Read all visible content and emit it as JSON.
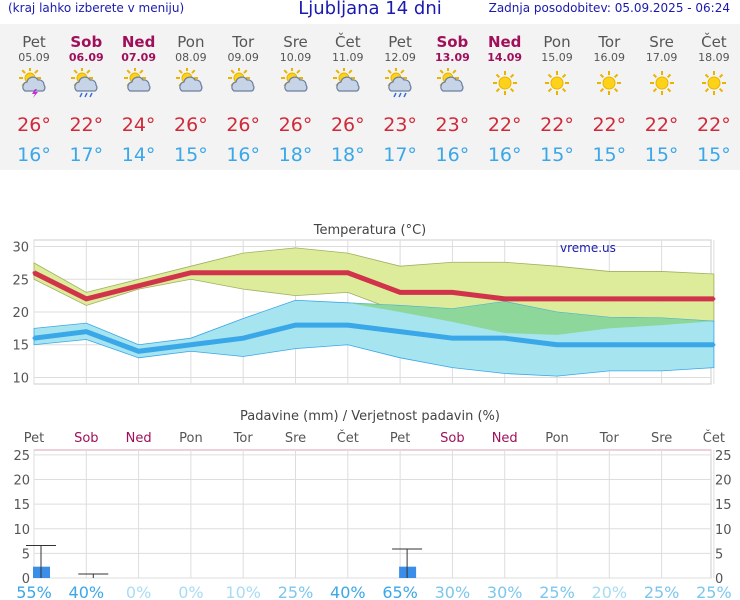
{
  "header": {
    "left_note": "(kraj lahko izberete v meniju)",
    "title": "Ljubljana 14 dni",
    "updated": "Zadnja posodobitev: 05.09.2025 - 06:24"
  },
  "days": [
    {
      "name": "Pet",
      "date": "05.09",
      "icon": "sun-cloud-thunder-icon",
      "max": "26°",
      "min": "16°",
      "weekend": false
    },
    {
      "name": "Sob",
      "date": "06.09",
      "icon": "sun-cloud-rain-icon",
      "max": "22°",
      "min": "17°",
      "weekend": true
    },
    {
      "name": "Ned",
      "date": "07.09",
      "icon": "sun-cloud-icon",
      "max": "24°",
      "min": "14°",
      "weekend": true
    },
    {
      "name": "Pon",
      "date": "08.09",
      "icon": "sun-cloud-icon",
      "max": "26°",
      "min": "15°",
      "weekend": false
    },
    {
      "name": "Tor",
      "date": "09.09",
      "icon": "sun-cloud-icon",
      "max": "26°",
      "min": "16°",
      "weekend": false
    },
    {
      "name": "Sre",
      "date": "10.09",
      "icon": "sun-cloud-icon",
      "max": "26°",
      "min": "18°",
      "weekend": false
    },
    {
      "name": "Čet",
      "date": "11.09",
      "icon": "sun-cloud-icon",
      "max": "26°",
      "min": "18°",
      "weekend": false
    },
    {
      "name": "Pet",
      "date": "12.09",
      "icon": "sun-cloud-rain-icon",
      "max": "23°",
      "min": "17°",
      "weekend": false
    },
    {
      "name": "Sob",
      "date": "13.09",
      "icon": "sun-cloud-icon",
      "max": "23°",
      "min": "16°",
      "weekend": true
    },
    {
      "name": "Ned",
      "date": "14.09",
      "icon": "sun-icon",
      "max": "22°",
      "min": "16°",
      "weekend": true
    },
    {
      "name": "Pon",
      "date": "15.09",
      "icon": "sun-icon",
      "max": "22°",
      "min": "15°",
      "weekend": false
    },
    {
      "name": "Tor",
      "date": "16.09",
      "icon": "sun-icon",
      "max": "22°",
      "min": "15°",
      "weekend": false
    },
    {
      "name": "Sre",
      "date": "17.09",
      "icon": "sun-icon",
      "max": "22°",
      "min": "15°",
      "weekend": false
    },
    {
      "name": "Čet",
      "date": "18.09",
      "icon": "sun-icon",
      "max": "22°",
      "min": "15°",
      "weekend": false
    }
  ],
  "colors": {
    "max_line": "#d0334a",
    "min_line": "#3aa7e8",
    "max_band": "#dcec9a",
    "min_band": "#a6e4f0",
    "overlap": "#88d58c",
    "rain_bar": "#3a8ee8",
    "weekend": "#a0105a",
    "weekday": "#555555",
    "prob": "#3aa7e8"
  },
  "chart_data": [
    {
      "type": "line",
      "title": "Temperatura (°C)",
      "watermark": "vreme.us",
      "categories": [
        "Pet",
        "Sob",
        "Ned",
        "Pon",
        "Tor",
        "Sre",
        "Čet",
        "Pet",
        "Sob",
        "Ned",
        "Pon",
        "Tor",
        "Sre",
        "Čet"
      ],
      "ylim": [
        9,
        31
      ],
      "yticks": [
        10,
        15,
        20,
        25,
        30
      ],
      "grid": true,
      "series": [
        {
          "role": "max",
          "values": [
            26,
            22,
            24,
            26,
            26,
            26,
            26,
            23,
            23,
            22,
            22,
            22,
            22,
            22
          ]
        },
        {
          "role": "max_upper",
          "values": [
            27.5,
            23,
            25,
            27,
            29,
            29.8,
            29,
            27,
            27.6,
            27.6,
            27,
            26.2,
            26.2,
            25.8
          ]
        },
        {
          "role": "max_lower",
          "values": [
            25,
            21,
            23.5,
            25,
            23.5,
            22.5,
            23,
            20,
            18.5,
            16.8,
            16.5,
            17.5,
            18,
            18.6
          ]
        },
        {
          "role": "min",
          "values": [
            16,
            17,
            14,
            15,
            16,
            18,
            18,
            17,
            16,
            16,
            15,
            15,
            15,
            15
          ]
        },
        {
          "role": "min_upper",
          "values": [
            17.5,
            18.3,
            15,
            16,
            19,
            21.8,
            21.4,
            21,
            20.5,
            21.6,
            20,
            19.2,
            19.1,
            18.6
          ]
        },
        {
          "role": "min_lower",
          "values": [
            15,
            15.8,
            13,
            14,
            13.2,
            14.4,
            15,
            13,
            11.5,
            10.6,
            10.2,
            11,
            11,
            11.5
          ]
        }
      ]
    },
    {
      "type": "bar",
      "title": "Padavine (mm) / Verjetnost padavin (%)",
      "categories": [
        "Pet",
        "Sob",
        "Ned",
        "Pon",
        "Tor",
        "Sre",
        "Čet",
        "Pet",
        "Sob",
        "Ned",
        "Pon",
        "Tor",
        "Sre",
        "Čet"
      ],
      "ylim": [
        0,
        26
      ],
      "yticks": [
        0,
        5,
        10,
        15,
        20,
        25
      ],
      "grid": true,
      "values": [
        2.3,
        0,
        0,
        0,
        0,
        0,
        0,
        2.3,
        0,
        0,
        0,
        0,
        0,
        0
      ],
      "error_high": [
        6.6,
        0.8,
        0,
        0,
        0,
        0,
        0,
        5.9,
        0,
        0,
        0,
        0,
        0,
        0
      ],
      "probability": [
        "55%",
        "40%",
        "0%",
        "0%",
        "10%",
        "25%",
        "40%",
        "65%",
        "30%",
        "30%",
        "25%",
        "20%",
        "25%",
        "25%"
      ],
      "probability_colors": [
        "#3aa7e8",
        "#3aa7e8",
        "#a8dcf5",
        "#a8dcf5",
        "#a8dcf5",
        "#7cc6ee",
        "#3aa7e8",
        "#3aa7e8",
        "#7cc6ee",
        "#7cc6ee",
        "#7cc6ee",
        "#a8dcf5",
        "#7cc6ee",
        "#7cc6ee"
      ]
    }
  ]
}
